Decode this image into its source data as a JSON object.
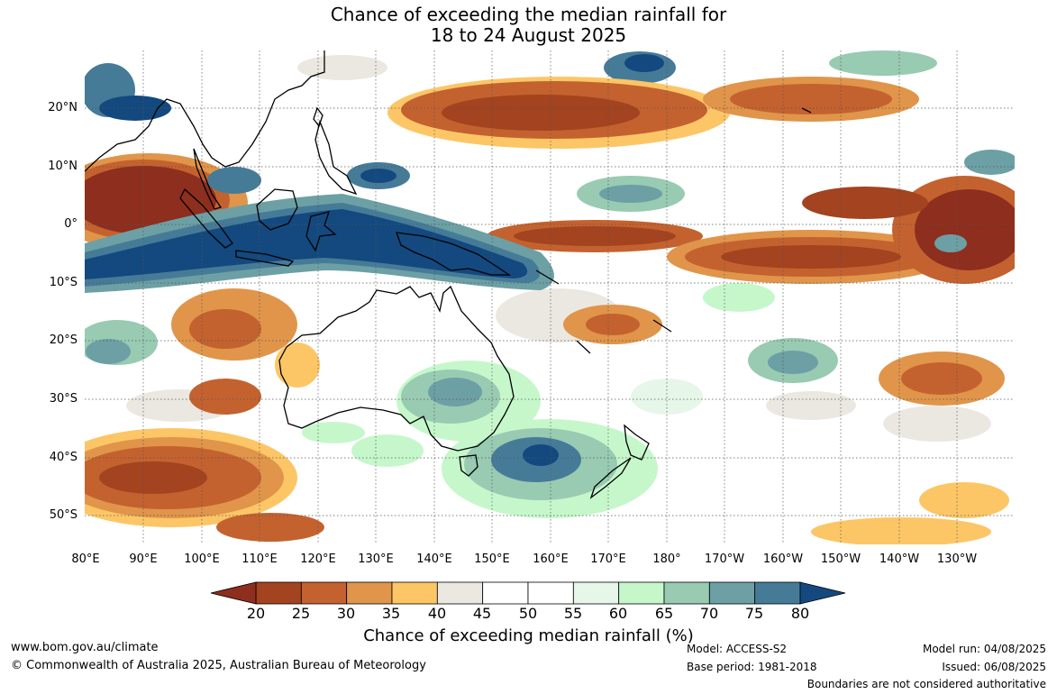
{
  "title": {
    "line1": "Chance of exceeding the median rainfall for",
    "line2": "18 to 24 August 2025"
  },
  "map": {
    "lat_labels": [
      "20°N",
      "10°N",
      "0°",
      "10°S",
      "20°S",
      "30°S",
      "40°S",
      "50°S"
    ],
    "lon_labels": [
      "80°E",
      "90°E",
      "100°E",
      "110°E",
      "120°E",
      "130°E",
      "140°E",
      "150°E",
      "160°E",
      "170°E",
      "180°",
      "170°W",
      "160°W",
      "150°W",
      "140°W",
      "130°W"
    ],
    "region_values": [
      {
        "region": "Maritime Continent to Solomon Sea",
        "chance_pct": 80
      },
      {
        "region": "Bay of Bengal / Andaman Sea",
        "chance_pct": 20
      },
      {
        "region": "Equatorial central Pacific",
        "chance_pct": 20
      },
      {
        "region": "North Pacific subtropics",
        "chance_pct": 25
      },
      {
        "region": "Southeast Australia and Tasman Sea",
        "chance_pct": 75
      },
      {
        "region": "Southern Indian Ocean 40-50°S",
        "chance_pct": 25
      }
    ]
  },
  "colorbar": {
    "ticks": [
      "20",
      "25",
      "30",
      "35",
      "40",
      "45",
      "50",
      "55",
      "60",
      "65",
      "70",
      "75",
      "80"
    ],
    "colors": [
      "#a3431f",
      "#c4622f",
      "#e0954a",
      "#fcc667",
      "#ebe8e2",
      "#ffffff",
      "#ffffff",
      "#e6f6e8",
      "#c6f7cb",
      "#98cbb2",
      "#6ca0a5",
      "#467b98"
    ],
    "under_color": "#8e2e1e",
    "over_color": "#13497f",
    "label": "Chance of exceeding median rainfall (%)"
  },
  "footer": {
    "url": "www.bom.gov.au/climate",
    "copyright": "© Commonwealth of Australia 2025, Australian Bureau of Meteorology",
    "model": "Model: ACCESS-S2",
    "base_period": "Base period: 1981-2018",
    "model_run": "Model run: 04/08/2025",
    "issued": "Issued: 06/08/2025",
    "disclaimer": "Boundaries are not considered authoritative"
  }
}
